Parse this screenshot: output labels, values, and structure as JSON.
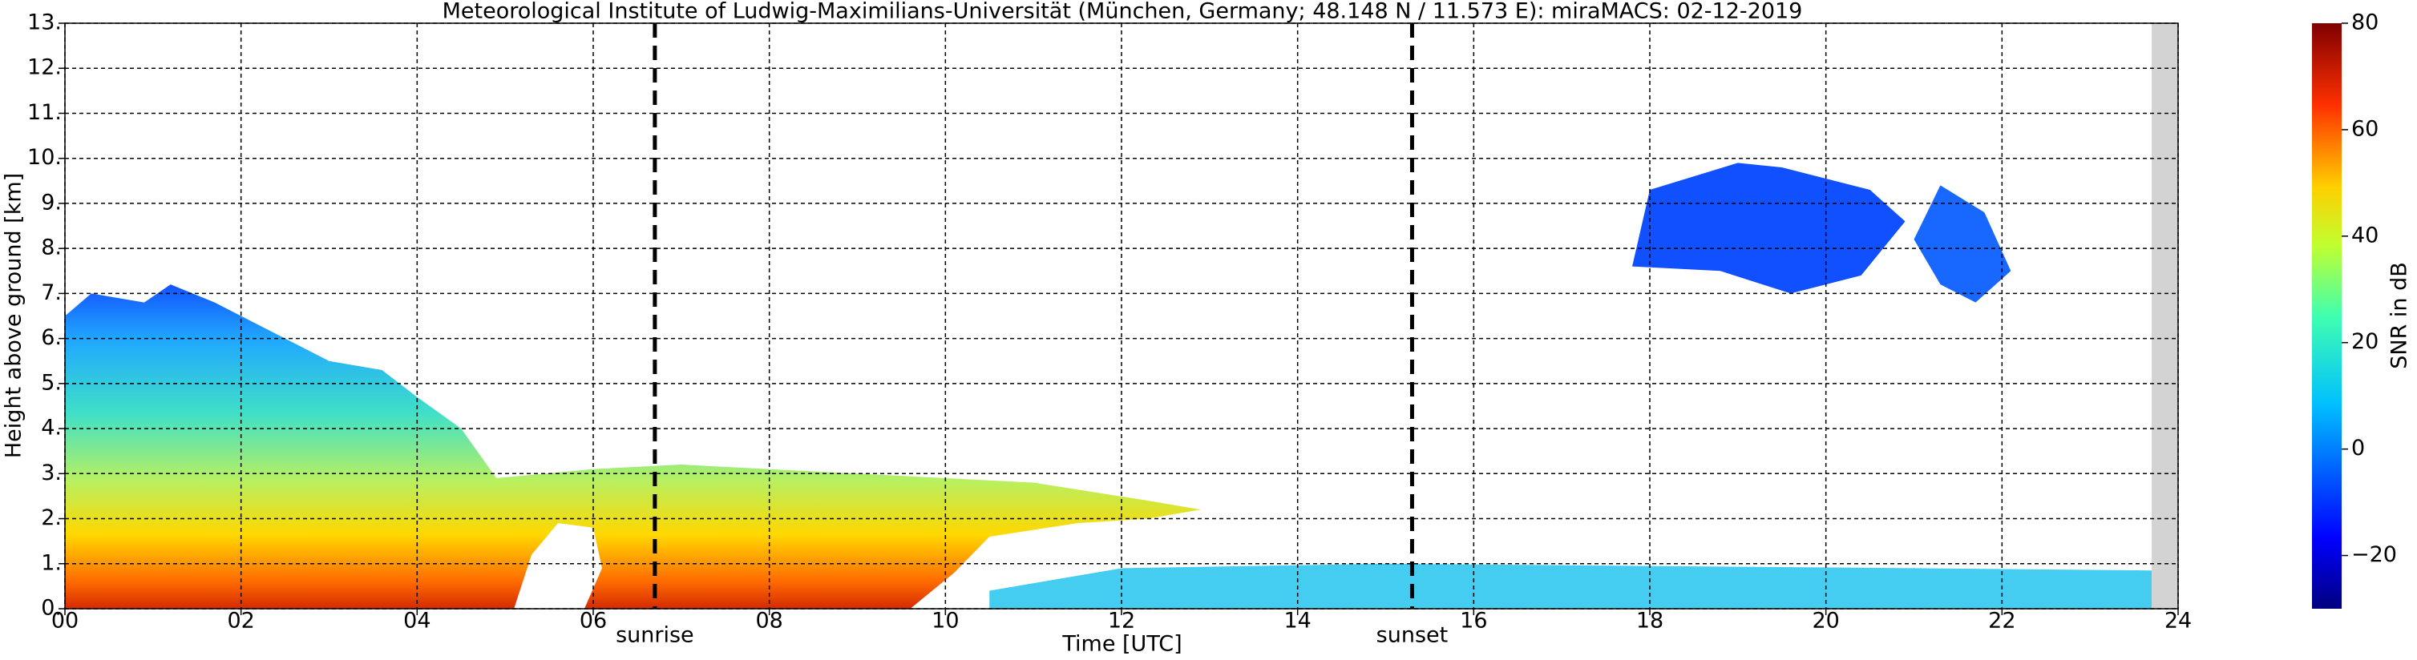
{
  "chart_data": {
    "type": "heatmap",
    "title": "Meteorological Institute of Ludwig-Maximilians-Universität (München, Germany; 48.148 N / 11.573 E):    miraMACS: 02-12-2019",
    "xlabel": "Time [UTC]",
    "ylabel": "Height above ground [km]",
    "colorbar_label": "SNR in dB",
    "xlim": [
      0,
      24
    ],
    "ylim": [
      0,
      13
    ],
    "xticks": [
      {
        "value": 0,
        "label": "00"
      },
      {
        "value": 2,
        "label": "02"
      },
      {
        "value": 4,
        "label": "04"
      },
      {
        "value": 6,
        "label": "06"
      },
      {
        "value": 8,
        "label": "08"
      },
      10,
      12,
      14,
      16,
      18,
      20,
      22,
      24
    ],
    "yticks": [
      {
        "value": 0,
        "label": "0."
      },
      {
        "value": 1,
        "label": "1."
      },
      {
        "value": 2,
        "label": "2."
      },
      {
        "value": 3,
        "label": "3."
      },
      {
        "value": 4,
        "label": "4."
      },
      {
        "value": 5,
        "label": "5."
      },
      {
        "value": 6,
        "label": "6."
      },
      {
        "value": 7,
        "label": "7."
      },
      {
        "value": 8,
        "label": "8."
      },
      {
        "value": 9,
        "label": "9."
      },
      {
        "value": 10,
        "label": "10."
      },
      {
        "value": 11,
        "label": "11."
      },
      {
        "value": 12,
        "label": "12."
      },
      {
        "value": 13,
        "label": "13."
      }
    ],
    "clim": [
      -30,
      80
    ],
    "cticks": [
      {
        "value": -20,
        "label": "−20"
      },
      0,
      20,
      40,
      60,
      80
    ],
    "annotations": [
      {
        "label": "sunrise",
        "x": 6.7
      },
      {
        "label": "sunset",
        "x": 15.3
      }
    ],
    "grid": true
  }
}
